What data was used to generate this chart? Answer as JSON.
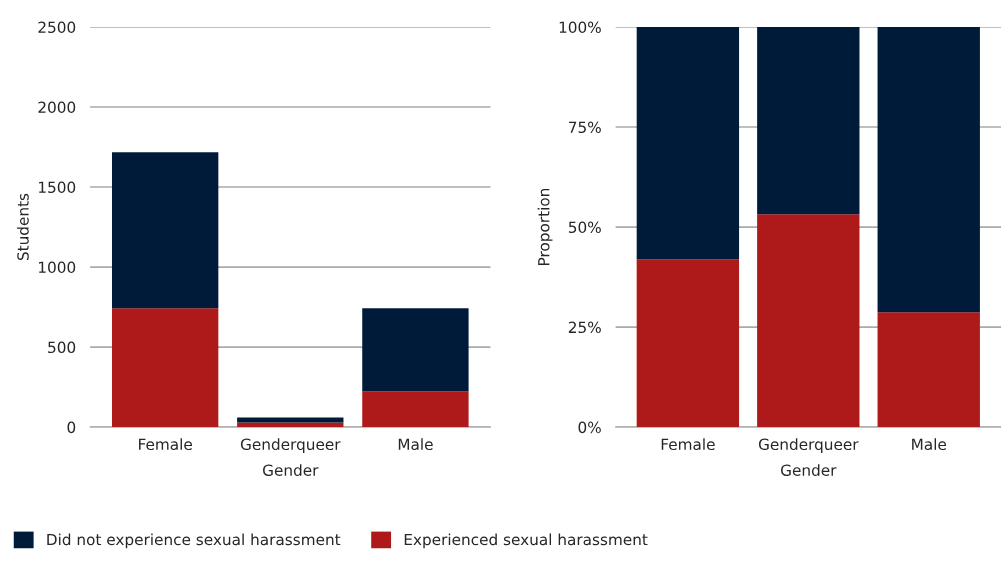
{
  "chart_data": [
    {
      "type": "bar",
      "stacked": true,
      "xlabel": "Gender",
      "ylabel": "Students",
      "categories": [
        "Female",
        "Genderqueer",
        "Male"
      ],
      "series": [
        {
          "name": "Experienced sexual harassment",
          "color": "#ae1919",
          "values": [
            742,
            29,
            223
          ]
        },
        {
          "name": "Did not experience sexual harassment",
          "color": "#001b3a",
          "values": [
            975,
            31,
            519
          ]
        }
      ],
      "ylim": [
        0,
        2500
      ],
      "yticks": [
        0,
        500,
        1000,
        1500,
        2000,
        2500
      ],
      "grid": "y",
      "legend": "bottom"
    },
    {
      "type": "bar",
      "stacked": true,
      "xlabel": "Gender",
      "ylabel": "Proportion",
      "categories": [
        "Female",
        "Genderqueer",
        "Male"
      ],
      "series": [
        {
          "color": "#ae1919",
          "values": [
            41.9,
            53.2,
            28.7
          ]
        },
        {
          "color": "#001b3a",
          "values": [
            58.1,
            46.8,
            71.3
          ]
        }
      ],
      "ylim": [
        0,
        100
      ],
      "yticks": [
        {
          "value": 0,
          "label": "0%"
        },
        {
          "value": 25,
          "label": "25%"
        },
        {
          "value": 50,
          "label": "50%"
        },
        {
          "value": 75,
          "label": "75%"
        },
        {
          "value": 100,
          "label": "100%"
        }
      ],
      "grid": "y"
    }
  ]
}
